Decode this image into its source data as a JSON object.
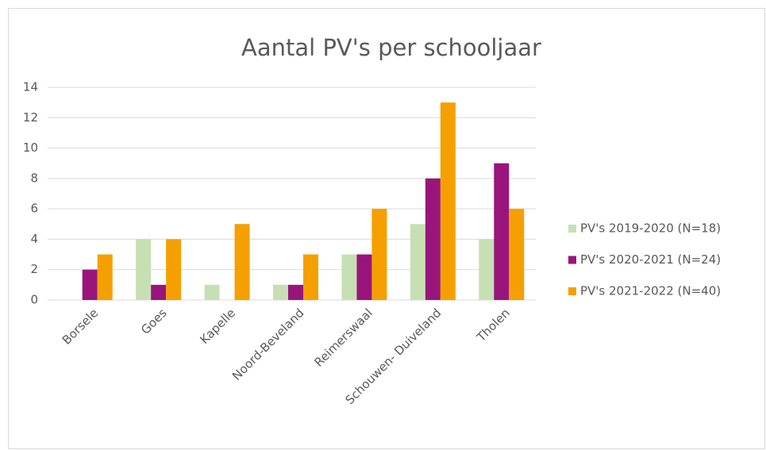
{
  "chart_data": {
    "type": "bar",
    "title": "Aantal PV's per schooljaar",
    "categories": [
      "Borsele",
      "Goes",
      "Kapelle",
      "Noord-Beveland",
      "Reimerswaal",
      "Schouwen- Duiveland",
      "Tholen"
    ],
    "series": [
      {
        "name": "PV's 2019-2020 (N=18)",
        "color": "#c6e0b4",
        "values": [
          0,
          4,
          1,
          1,
          3,
          5,
          4
        ]
      },
      {
        "name": "PV's 2020-2021 (N=24)",
        "color": "#99157b",
        "values": [
          2,
          1,
          0,
          1,
          3,
          8,
          9
        ]
      },
      {
        "name": "PV's 2021-2022 (N=40)",
        "color": "#f5a000",
        "values": [
          3,
          4,
          5,
          3,
          6,
          13,
          6
        ]
      }
    ],
    "ylim": [
      0,
      14
    ],
    "yticks": [
      0,
      2,
      4,
      6,
      8,
      10,
      12,
      14
    ],
    "grid": true,
    "legend": "right"
  }
}
